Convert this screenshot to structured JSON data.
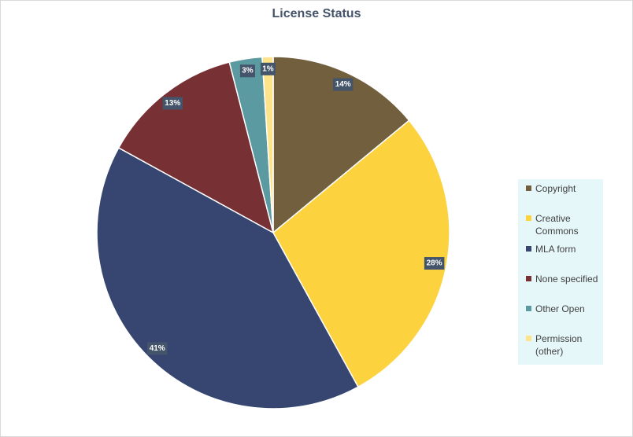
{
  "chart_data": {
    "type": "pie",
    "title": "License Status",
    "legend_position": "right",
    "slices": [
      {
        "label": "Copyright",
        "value": 14,
        "display": "14%",
        "color": "#725f3e"
      },
      {
        "label": "Creative Commons",
        "value": 28,
        "display": "28%",
        "color": "#fcd23e"
      },
      {
        "label": "MLA form",
        "value": 41,
        "display": "41%",
        "color": "#364670"
      },
      {
        "label": "None specified",
        "value": 13,
        "display": "13%",
        "color": "#773034"
      },
      {
        "label": "Other Open",
        "value": 3,
        "display": "3%",
        "color": "#5b9aa0"
      },
      {
        "label": "Permission (other)",
        "value": 1,
        "display": "1%",
        "color": "#fde38a"
      }
    ]
  },
  "legend": {
    "items": [
      {
        "label": "Copyright",
        "color": "#725f3e"
      },
      {
        "label": "Creative Commons",
        "color": "#fcd23e"
      },
      {
        "label": "MLA form",
        "color": "#364670"
      },
      {
        "label": "None specified",
        "color": "#773034"
      },
      {
        "label": "Other Open",
        "color": "#5b9aa0"
      },
      {
        "label": "Permission (other)",
        "color": "#fde38a"
      }
    ]
  }
}
